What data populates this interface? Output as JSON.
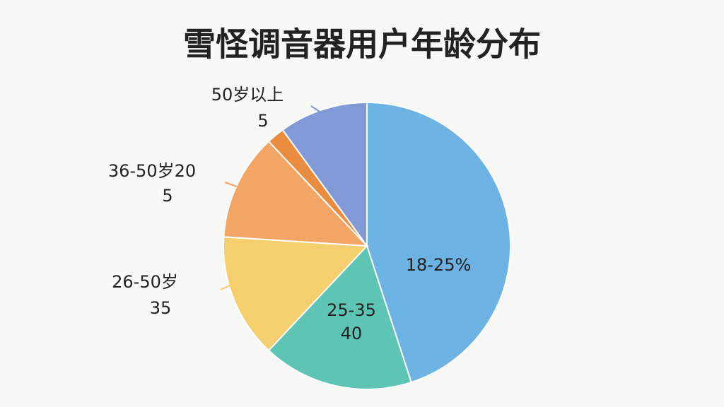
{
  "chart_data": {
    "type": "pie",
    "title": "雪怪调音器用户年龄分布",
    "categories": [
      "18-25%",
      "25-35",
      "26-50岁",
      "36-50岁20",
      null,
      "50岁以上"
    ],
    "sublabels": [
      null,
      "40",
      "35",
      "5",
      null,
      "5"
    ],
    "values": [
      45,
      17,
      14,
      12,
      2,
      10
    ],
    "colors": [
      "#6cb2e2",
      "#5ec5b5",
      "#f5cf6e",
      "#f2a565",
      "#ea8c40",
      "#8199d4"
    ]
  }
}
